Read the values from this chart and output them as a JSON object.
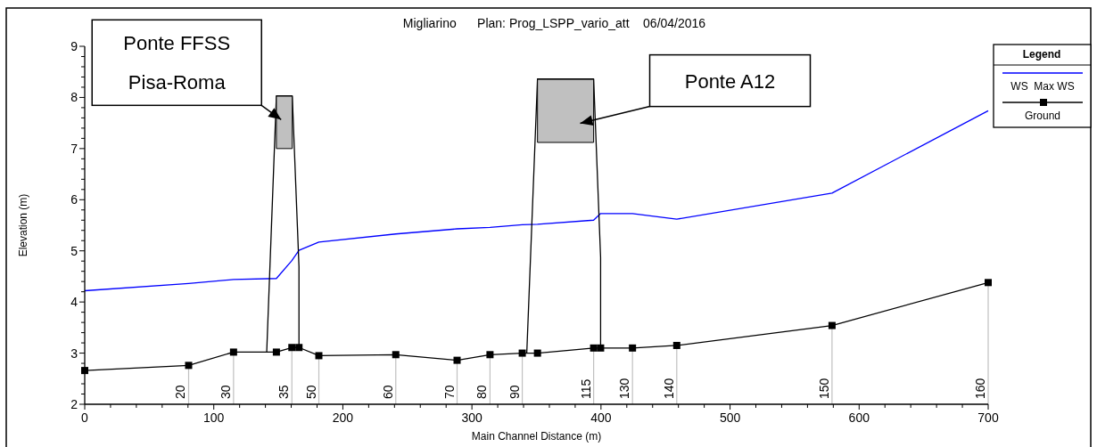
{
  "chart_data": {
    "type": "line",
    "title": "Migliarino      Plan: Prog_LSPP_vario_att    06/04/2016",
    "xlabel": "Main Channel Distance (m)",
    "ylabel": "Elevation (m)",
    "legend_title": "Legend",
    "legend": "right",
    "grid": false,
    "xlim": [
      0,
      700
    ],
    "xticks": [
      0,
      {
        "value": 20,
        "label": null
      },
      {
        "value": 40,
        "label": null
      },
      {
        "value": 60,
        "label": null
      },
      {
        "value": 80,
        "label": null
      },
      100,
      {
        "value": 120,
        "label": null
      },
      {
        "value": 140,
        "label": null
      },
      {
        "value": 160,
        "label": null
      },
      {
        "value": 180,
        "label": null
      },
      200,
      {
        "value": 220,
        "label": null
      },
      {
        "value": 240,
        "label": null
      },
      {
        "value": 260,
        "label": null
      },
      {
        "value": 280,
        "label": null
      },
      300,
      {
        "value": 320,
        "label": null
      },
      {
        "value": 340,
        "label": null
      },
      {
        "value": 360,
        "label": null
      },
      {
        "value": 380,
        "label": null
      },
      400,
      {
        "value": 420,
        "label": null
      },
      {
        "value": 440,
        "label": null
      },
      {
        "value": 460,
        "label": null
      },
      {
        "value": 480,
        "label": null
      },
      500,
      {
        "value": 520,
        "label": null
      },
      {
        "value": 540,
        "label": null
      },
      {
        "value": 560,
        "label": null
      },
      {
        "value": 580,
        "label": null
      },
      600,
      {
        "value": 620,
        "label": null
      },
      {
        "value": 640,
        "label": null
      },
      {
        "value": 660,
        "label": null
      },
      {
        "value": 680,
        "label": null
      },
      700
    ],
    "ylim": [
      2,
      9
    ],
    "yticks": [
      2,
      {
        "value": 2.2,
        "label": null
      },
      {
        "value": 2.4,
        "label": null
      },
      {
        "value": 2.6,
        "label": null
      },
      {
        "value": 2.8,
        "label": null
      },
      3,
      {
        "value": 3.2,
        "label": null
      },
      {
        "value": 3.4,
        "label": null
      },
      {
        "value": 3.6,
        "label": null
      },
      {
        "value": 3.8,
        "label": null
      },
      4,
      {
        "value": 4.2,
        "label": null
      },
      {
        "value": 4.4,
        "label": null
      },
      {
        "value": 4.6,
        "label": null
      },
      {
        "value": 4.8,
        "label": null
      },
      5,
      {
        "value": 5.2,
        "label": null
      },
      {
        "value": 5.4,
        "label": null
      },
      {
        "value": 5.6,
        "label": null
      },
      {
        "value": 5.8,
        "label": null
      },
      6,
      {
        "value": 6.2,
        "label": null
      },
      {
        "value": 6.4,
        "label": null
      },
      {
        "value": 6.6,
        "label": null
      },
      {
        "value": 6.8,
        "label": null
      },
      7,
      {
        "value": 7.2,
        "label": null
      },
      {
        "value": 7.4,
        "label": null
      },
      {
        "value": 7.6,
        "label": null
      },
      {
        "value": 7.8,
        "label": null
      },
      8,
      {
        "value": 8.2,
        "label": null
      },
      {
        "value": 8.4,
        "label": null
      },
      {
        "value": 8.6,
        "label": null
      },
      {
        "value": 8.8,
        "label": null
      },
      9
    ],
    "series": [
      {
        "name": "WS  Max WS",
        "color": "#0000ff",
        "marker": "none",
        "x": [
          0,
          80.5,
          115.3,
          148.5,
          160.5,
          166,
          181.4,
          241,
          288.5,
          314,
          339,
          350.8,
          394.3,
          399.7,
          424.4,
          458.7,
          579,
          700
        ],
        "values": [
          4.22,
          4.36,
          4.44,
          4.46,
          4.81,
          5.01,
          5.17,
          5.33,
          5.43,
          5.46,
          5.51,
          5.52,
          5.6,
          5.73,
          5.73,
          5.62,
          6.13,
          7.74
        ]
      },
      {
        "name": "Ground",
        "color": "#000000",
        "marker": "square",
        "x": [
          0,
          80.5,
          115.3,
          148.5,
          160.5,
          166,
          181.4,
          241,
          288.5,
          314,
          339,
          350.8,
          394.3,
          399.7,
          424.4,
          458.7,
          579,
          700
        ],
        "values": [
          2.66,
          2.76,
          3.02,
          3.02,
          3.11,
          3.11,
          2.95,
          2.97,
          2.86,
          2.97,
          3.0,
          3.0,
          3.1,
          3.1,
          3.1,
          3.15,
          3.54,
          4.38
        ]
      },
      {
        "color": "#000000",
        "marker": "none",
        "x": [
          141,
          148.5,
          160.8,
          166,
          166
        ],
        "values": [
          3.02,
          8.03,
          8.03,
          4.69,
          3.11
        ]
      },
      {
        "color": "#000000",
        "marker": "none",
        "x": [
          342.5,
          350.8,
          394.3,
          399.7,
          399.7
        ],
        "values": [
          3.0,
          8.36,
          8.36,
          4.87,
          3.1
        ]
      },
      {
        "color": "#000000",
        "marker": "none",
        "x": [
          148.5,
          160.8
        ],
        "values": [
          8.03,
          8.03
        ],
        "lower": [
          7.0,
          7.0
        ],
        "upper": [
          8.03,
          8.03
        ]
      },
      {
        "color": "#000000",
        "marker": "none",
        "x": [
          350.8,
          394.3
        ],
        "values": [
          8.36,
          8.36
        ],
        "lower": [
          7.12,
          7.12
        ],
        "upper": [
          8.36,
          8.36
        ]
      }
    ],
    "annotations": [
      "Ponte FFSS\nPisa-Roma",
      "Ponte A12",
      {
        "text": "20",
        "x": 80.5,
        "y": 2.76
      },
      {
        "text": "30",
        "x": 115.3,
        "y": 3.02
      },
      {
        "text": "35",
        "x": 160.5,
        "y": 3.11
      },
      {
        "text": "50",
        "x": 181.4,
        "y": 2.95
      },
      {
        "text": "60",
        "x": 241,
        "y": 2.97
      },
      {
        "text": "70",
        "x": 288.5,
        "y": 2.86
      },
      {
        "text": "80",
        "x": 314,
        "y": 2.97
      },
      {
        "text": "90",
        "x": 339,
        "y": 3.0
      },
      {
        "text": "115",
        "x": 394.3,
        "y": 3.1
      },
      {
        "text": "130",
        "x": 424.4,
        "y": 3.1
      },
      {
        "text": "140",
        "x": 458.7,
        "y": 3.15
      },
      {
        "text": "150",
        "x": 579,
        "y": 3.54
      },
      {
        "text": "160",
        "x": 700,
        "y": 4.38
      }
    ]
  }
}
